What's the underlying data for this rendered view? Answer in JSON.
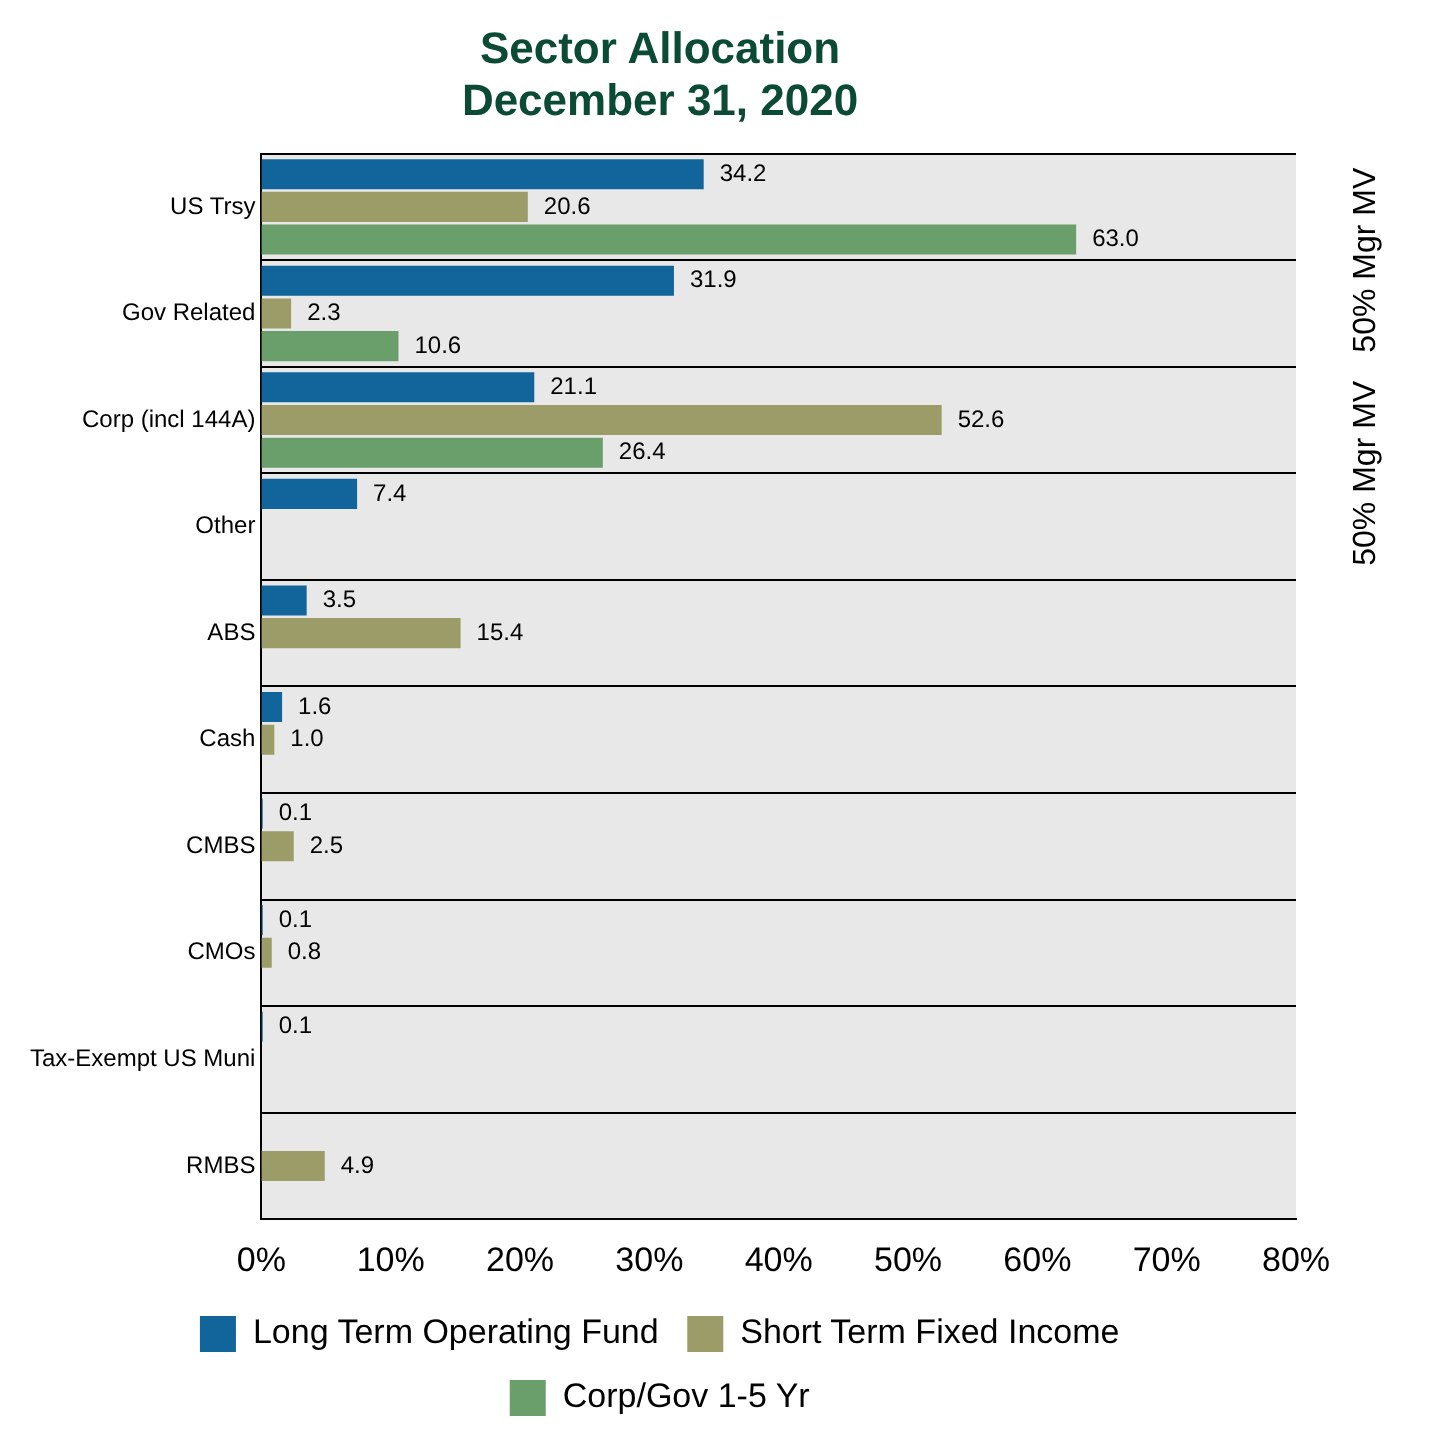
{
  "chart_data": {
    "type": "bar",
    "orientation": "horizontal",
    "title": "Sector Allocation",
    "subtitle": "December 31, 2020",
    "categories": [
      "US Trsy",
      "Gov Related",
      "Corp (incl 144A)",
      "Other",
      "ABS",
      "Cash",
      "CMBS",
      "CMOs",
      "Tax-Exempt US Muni",
      "RMBS"
    ],
    "series": [
      {
        "name": "Long Term Operating Fund",
        "color": "#11659b",
        "values": [
          34.2,
          31.9,
          21.1,
          7.4,
          3.5,
          1.6,
          0.1,
          0.1,
          0.1,
          null
        ],
        "value_labels": [
          "34.2",
          "31.9",
          "21.1",
          "7.4",
          "3.5",
          "1.6",
          "0.1",
          "0.1",
          "0.1",
          null
        ]
      },
      {
        "name": "Short Term Fixed Income",
        "color": "#9c9c68",
        "values": [
          20.6,
          2.3,
          52.6,
          null,
          15.4,
          1.0,
          2.5,
          0.8,
          null,
          4.9
        ],
        "value_labels": [
          "20.6",
          "2.3",
          "52.6",
          null,
          "15.4",
          "1.0",
          "2.5",
          "0.8",
          null,
          "4.9"
        ]
      },
      {
        "name": "Corp/Gov 1-5 Yr",
        "color": "#6a9e6a",
        "values": [
          63.0,
          10.6,
          26.4,
          null,
          null,
          null,
          null,
          null,
          null,
          null
        ],
        "value_labels": [
          "63.0",
          "10.6",
          "26.4",
          null,
          null,
          null,
          null,
          null,
          null,
          null
        ]
      }
    ],
    "xlim": [
      0,
      80
    ],
    "xticks": [
      {
        "value": 0,
        "label": "0%"
      },
      {
        "value": 10,
        "label": "10%"
      },
      {
        "value": 20,
        "label": "20%"
      },
      {
        "value": 30,
        "label": "30%"
      },
      {
        "value": 40,
        "label": "40%"
      },
      {
        "value": 50,
        "label": "50%"
      },
      {
        "value": 60,
        "label": "60%"
      },
      {
        "value": 70,
        "label": "70%"
      },
      {
        "value": 80,
        "label": "80%"
      }
    ],
    "grid": "y",
    "legend": "bottom",
    "annotations": [
      "50% Mgr MV",
      "50% Mgr MV"
    ]
  }
}
